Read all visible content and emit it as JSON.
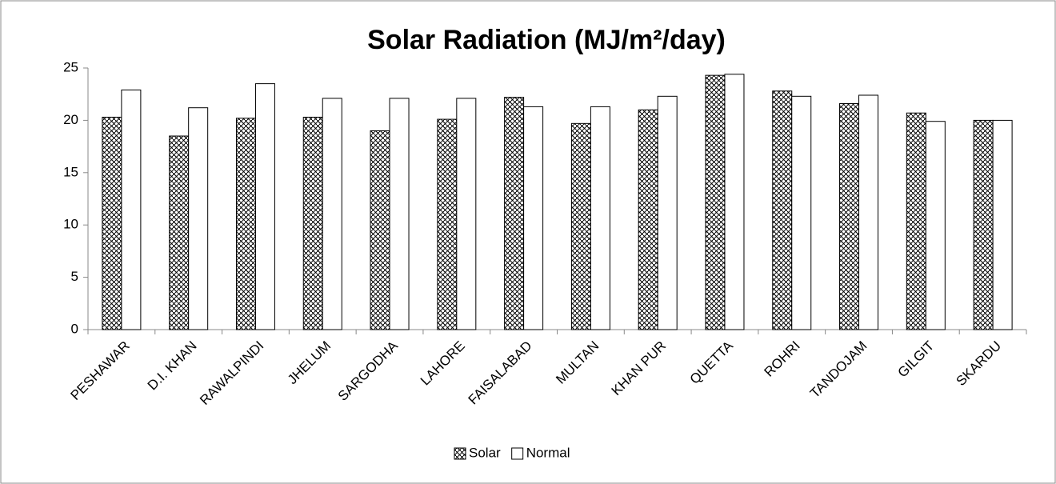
{
  "chart_data": {
    "type": "bar",
    "title": "Solar Radiation (MJ/m²/day)",
    "categories": [
      "PESHAWAR",
      "D.I. KHAN",
      "RAWALPINDI",
      "JHELUM",
      "SARGODHA",
      "LAHORE",
      "FAISALABAD",
      "MULTAN",
      "KHAN PUR",
      "QUETTA",
      "ROHRI",
      "TANDOJAM",
      "GILGIT",
      "SKARDU"
    ],
    "series": [
      {
        "name": "Solar",
        "color": "#000000",
        "pattern": "dots",
        "values": [
          20.3,
          18.5,
          20.2,
          20.3,
          19.0,
          20.1,
          22.2,
          19.7,
          21.0,
          24.3,
          22.8,
          21.6,
          20.7,
          20.0
        ]
      },
      {
        "name": "Normal",
        "color": "#ffffff",
        "values": [
          22.9,
          21.2,
          23.5,
          22.1,
          22.1,
          22.1,
          21.3,
          21.3,
          22.3,
          24.4,
          22.3,
          22.4,
          19.9,
          20.0
        ]
      }
    ],
    "ylim": [
      0,
      25
    ],
    "yticks": [
      0,
      5,
      10,
      15,
      20,
      25
    ],
    "grid": false,
    "legend": "bottom"
  }
}
